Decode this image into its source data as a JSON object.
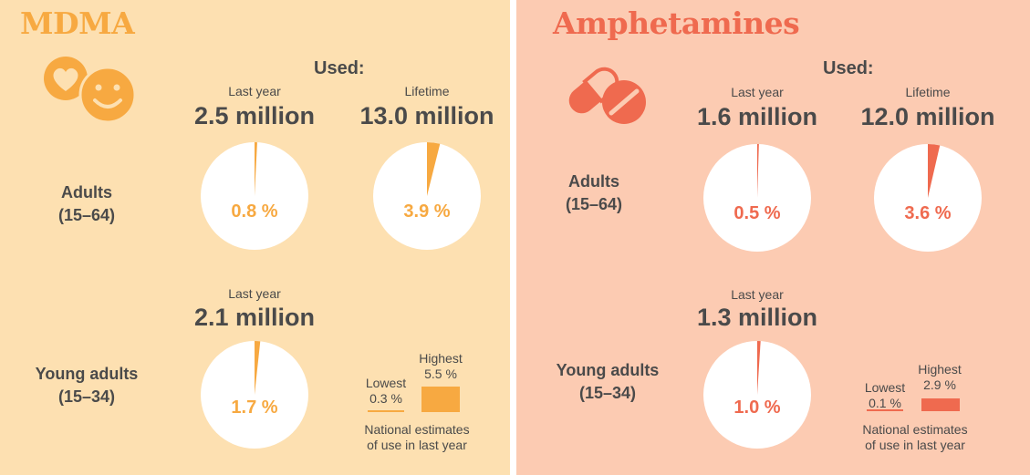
{
  "colors": {
    "mdma_bg": "#fde0b1",
    "amph_bg": "#fccbb2",
    "mdma_accent": "#f7a941",
    "amph_accent": "#ef6a4f",
    "pie_fill": "#ffffff",
    "text": "#4a4a4a"
  },
  "panels": {
    "mdma": {
      "title": "MDMA",
      "icon": "heart-smiley-icon",
      "used_label": "Used:",
      "adults": {
        "label_line1": "Adults",
        "label_line2": "(15–64)"
      },
      "young": {
        "label_line1": "Young adults",
        "label_line2": "(15–34)"
      },
      "legend": {
        "lowest_label": "Lowest",
        "lowest_value": "0.3 %",
        "highest_label": "Highest",
        "highest_value": "5.5 %",
        "note_line1": "National estimates",
        "note_line2": "of use in last year"
      }
    },
    "amph": {
      "title": "Amphetamines",
      "icon": "pill-capsule-icon",
      "used_label": "Used:",
      "adults": {
        "label_line1": "Adults",
        "label_line2": "(15–64)"
      },
      "young": {
        "label_line1": "Young adults",
        "label_line2": "(15–34)"
      },
      "legend": {
        "lowest_label": "Lowest",
        "lowest_value": "0.1 %",
        "highest_label": "Highest",
        "highest_value": "2.9 %",
        "note_line1": "National estimates",
        "note_line2": "of use in last year"
      }
    }
  },
  "chart_data": [
    {
      "type": "pie",
      "group": "MDMA",
      "population": "Adults (15–64)",
      "period_label": "Last year",
      "count_label": "2.5 million",
      "percent": 0.8,
      "percent_label": "0.8 %"
    },
    {
      "type": "pie",
      "group": "MDMA",
      "population": "Adults (15–64)",
      "period_label": "Lifetime",
      "count_label": "13.0 million",
      "percent": 3.9,
      "percent_label": "3.9 %"
    },
    {
      "type": "pie",
      "group": "MDMA",
      "population": "Young adults (15–34)",
      "period_label": "Last year",
      "count_label": "2.1 million",
      "percent": 1.7,
      "percent_label": "1.7 %"
    },
    {
      "type": "pie",
      "group": "Amphetamines",
      "population": "Adults (15–64)",
      "period_label": "Last year",
      "count_label": "1.6 million",
      "percent": 0.5,
      "percent_label": "0.5 %"
    },
    {
      "type": "pie",
      "group": "Amphetamines",
      "population": "Adults (15–64)",
      "period_label": "Lifetime",
      "count_label": "12.0 million",
      "percent": 3.6,
      "percent_label": "3.6 %"
    },
    {
      "type": "pie",
      "group": "Amphetamines",
      "population": "Young adults (15–34)",
      "period_label": "Last year",
      "count_label": "1.3 million",
      "percent": 1.0,
      "percent_label": "1.0 %"
    },
    {
      "type": "bar",
      "group": "MDMA",
      "categories": [
        "Lowest",
        "Highest"
      ],
      "values": [
        0.3,
        5.5
      ]
    },
    {
      "type": "bar",
      "group": "Amphetamines",
      "categories": [
        "Lowest",
        "Highest"
      ],
      "values": [
        0.1,
        2.9
      ]
    }
  ]
}
